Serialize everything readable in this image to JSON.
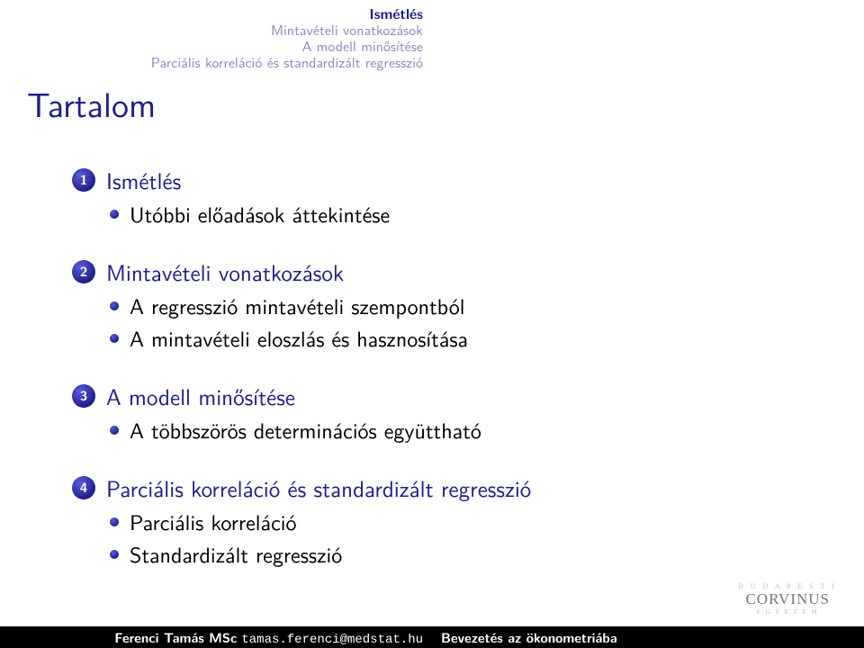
{
  "header": {
    "lines": [
      {
        "text": "Ismétlés",
        "class": "active"
      },
      {
        "text": "Mintavételi vonatkozások",
        "class": "inactive"
      },
      {
        "text": "A modell minősítése",
        "class": "inactive"
      },
      {
        "text": "Parciális korreláció és standardizált regresszió",
        "class": "inactive"
      }
    ]
  },
  "title": "Tartalom",
  "outline": [
    {
      "num": "1",
      "title": "Ismétlés",
      "items": [
        "Utóbbi előadások áttekintése"
      ]
    },
    {
      "num": "2",
      "title": "Mintavételi vonatkozások",
      "items": [
        "A regresszió mintavételi szempontból",
        "A mintavételi eloszlás és hasznosítása"
      ]
    },
    {
      "num": "3",
      "title": "A modell minősítése",
      "items": [
        "A többszörös determinációs együttható"
      ]
    },
    {
      "num": "4",
      "title": "Parciális korreláció és standardizált regresszió",
      "items": [
        "Parciális korreláció",
        "Standardizált regresszió"
      ]
    }
  ],
  "logo": {
    "sup": "B U D A P E S T I",
    "main": "CORVINUS",
    "sub": "E G Y E T E M"
  },
  "footer": {
    "author": "Ferenci Tamás MSc",
    "email": "tamas.ferenci@medstat.hu",
    "right": "Bevezetés az ökonometriába"
  },
  "colors": {
    "accent": "#20208a",
    "inactive": "#8a8ac0",
    "bg": "#ffffff",
    "footer_bg": "#000000"
  }
}
